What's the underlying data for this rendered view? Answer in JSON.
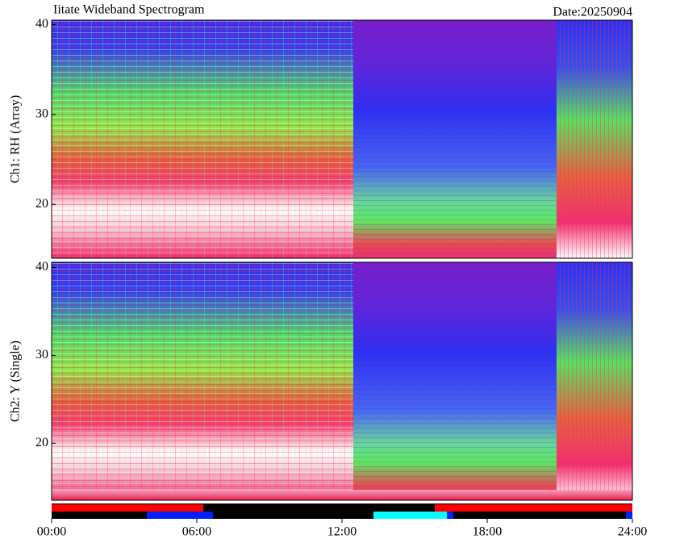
{
  "title": "Iitate Wideband Spectrogram",
  "date": "Date:20250904",
  "chart_data": [
    {
      "type": "spectrogram",
      "ylabel": "Ch1: RH (Array)",
      "ylim": [
        14,
        40.5
      ],
      "yticks": [
        20,
        30,
        40
      ],
      "xlim": [
        0,
        24
      ]
    },
    {
      "type": "spectrogram",
      "ylabel": "Ch2: Y (Single)",
      "ylim": [
        13.5,
        40.6
      ],
      "yticks": [
        20,
        30,
        40
      ],
      "xlim": [
        0,
        24
      ],
      "xticks": [
        {
          "value": 0,
          "label": "00:00"
        },
        {
          "value": 6,
          "label": "06:00"
        },
        {
          "value": 12,
          "label": "12:00"
        },
        {
          "value": 18,
          "label": "18:00"
        },
        {
          "value": 24,
          "label": "24:00"
        }
      ]
    }
  ]
}
